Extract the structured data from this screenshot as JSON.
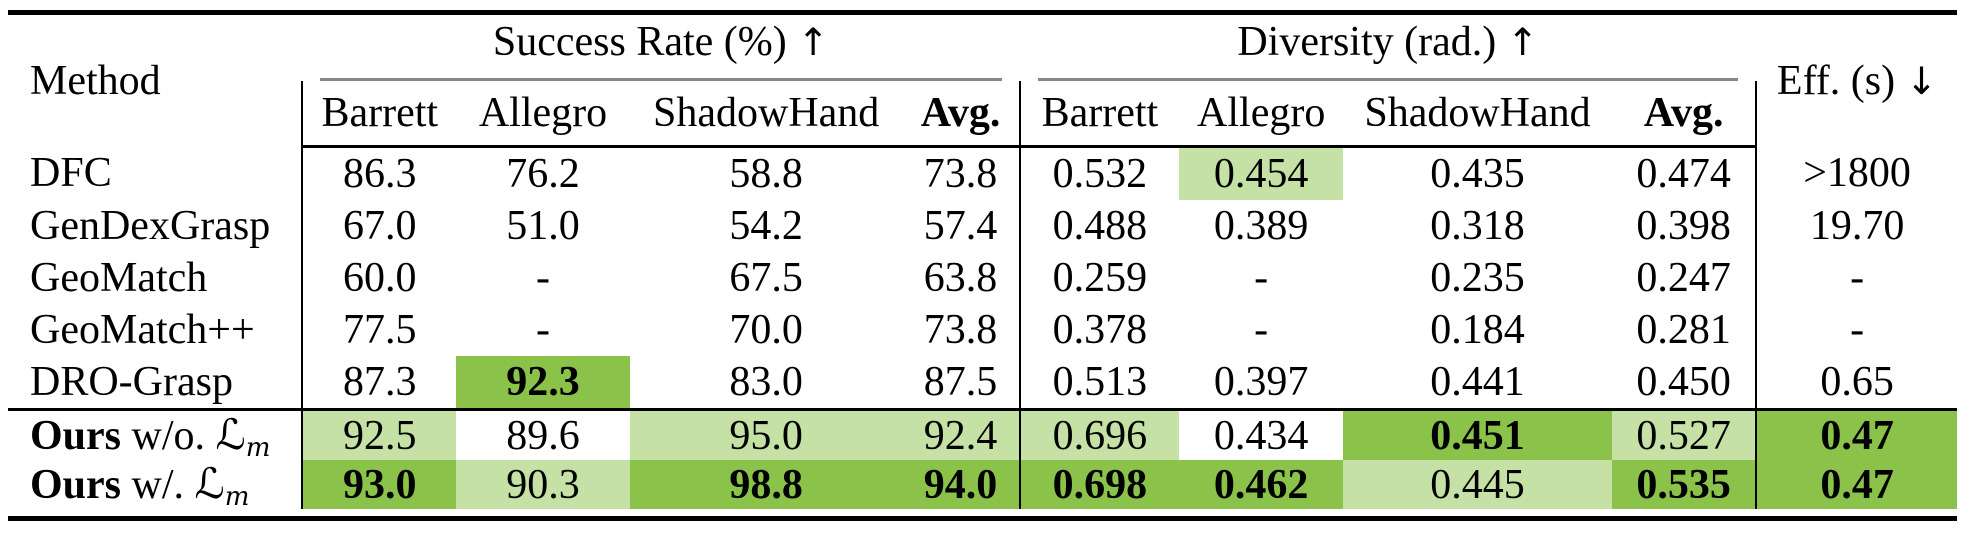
{
  "title": "Grasping methods comparison table",
  "symbols": {
    "script_L": "ℒ",
    "up_arrow": "↑",
    "down_arrow": "↓"
  },
  "colors": {
    "best_highlight": "#8bc34a",
    "second_highlight": "#c5e1a5"
  },
  "header": {
    "method": "Method",
    "groups": [
      {
        "label": "Success Rate (%)",
        "arrow": "↑",
        "cols": [
          "Barrett",
          "Allegro",
          "ShadowHand",
          "Avg."
        ]
      },
      {
        "label": "Diversity (rad.)",
        "arrow": "↑",
        "cols": [
          "Barrett",
          "Allegro",
          "ShadowHand",
          "Avg."
        ]
      }
    ],
    "eff": {
      "label": "Eff. (s)",
      "arrow": "↓"
    }
  },
  "rows": [
    {
      "method": "DFC",
      "cells": [
        {
          "v": "86.3"
        },
        {
          "v": "76.2"
        },
        {
          "v": "58.8"
        },
        {
          "v": "73.8"
        },
        {
          "v": "0.532"
        },
        {
          "v": "0.454",
          "hl": "second"
        },
        {
          "v": "0.435"
        },
        {
          "v": "0.474"
        },
        {
          "v": ">1800"
        }
      ]
    },
    {
      "method": "GenDexGrasp",
      "cells": [
        {
          "v": "67.0"
        },
        {
          "v": "51.0"
        },
        {
          "v": "54.2"
        },
        {
          "v": "57.4"
        },
        {
          "v": "0.488"
        },
        {
          "v": "0.389"
        },
        {
          "v": "0.318"
        },
        {
          "v": "0.398"
        },
        {
          "v": "19.70"
        }
      ]
    },
    {
      "method": "GeoMatch",
      "cells": [
        {
          "v": "60.0"
        },
        {
          "v": "-"
        },
        {
          "v": "67.5"
        },
        {
          "v": "63.8"
        },
        {
          "v": "0.259"
        },
        {
          "v": "-"
        },
        {
          "v": "0.235"
        },
        {
          "v": "0.247"
        },
        {
          "v": "-"
        }
      ]
    },
    {
      "method": "GeoMatch++",
      "cells": [
        {
          "v": "77.5"
        },
        {
          "v": "-"
        },
        {
          "v": "70.0"
        },
        {
          "v": "73.8"
        },
        {
          "v": "0.378"
        },
        {
          "v": "-"
        },
        {
          "v": "0.184"
        },
        {
          "v": "0.281"
        },
        {
          "v": "-"
        }
      ]
    },
    {
      "method": "DRO-Grasp",
      "cells": [
        {
          "v": "87.3"
        },
        {
          "v": "92.3",
          "hl": "best",
          "b": true
        },
        {
          "v": "83.0"
        },
        {
          "v": "87.5"
        },
        {
          "v": "0.513"
        },
        {
          "v": "0.397"
        },
        {
          "v": "0.441"
        },
        {
          "v": "0.450"
        },
        {
          "v": "0.65"
        }
      ]
    },
    {
      "method": {
        "bold": "Ours",
        "variant": "w/o.",
        "sub": "m"
      },
      "sep": true,
      "ours": true,
      "cells": [
        {
          "v": "92.5",
          "hl": "second"
        },
        {
          "v": "89.6"
        },
        {
          "v": "95.0",
          "hl": "second"
        },
        {
          "v": "92.4",
          "hl": "second"
        },
        {
          "v": "0.696",
          "hl": "second"
        },
        {
          "v": "0.434"
        },
        {
          "v": "0.451",
          "hl": "best",
          "b": true
        },
        {
          "v": "0.527",
          "hl": "second"
        },
        {
          "v": "0.47",
          "hl": "best",
          "b": true
        }
      ]
    },
    {
      "method": {
        "bold": "Ours",
        "variant": "w/.",
        "sub": "m"
      },
      "ours": true,
      "cells": [
        {
          "v": "93.0",
          "hl": "best",
          "b": true
        },
        {
          "v": "90.3",
          "hl": "second"
        },
        {
          "v": "98.8",
          "hl": "best",
          "b": true
        },
        {
          "v": "94.0",
          "hl": "best",
          "b": true
        },
        {
          "v": "0.698",
          "hl": "best",
          "b": true
        },
        {
          "v": "0.462",
          "hl": "best",
          "b": true
        },
        {
          "v": "0.445",
          "hl": "second"
        },
        {
          "v": "0.535",
          "hl": "best",
          "b": true
        },
        {
          "v": "0.47",
          "hl": "best",
          "b": true
        }
      ]
    }
  ]
}
